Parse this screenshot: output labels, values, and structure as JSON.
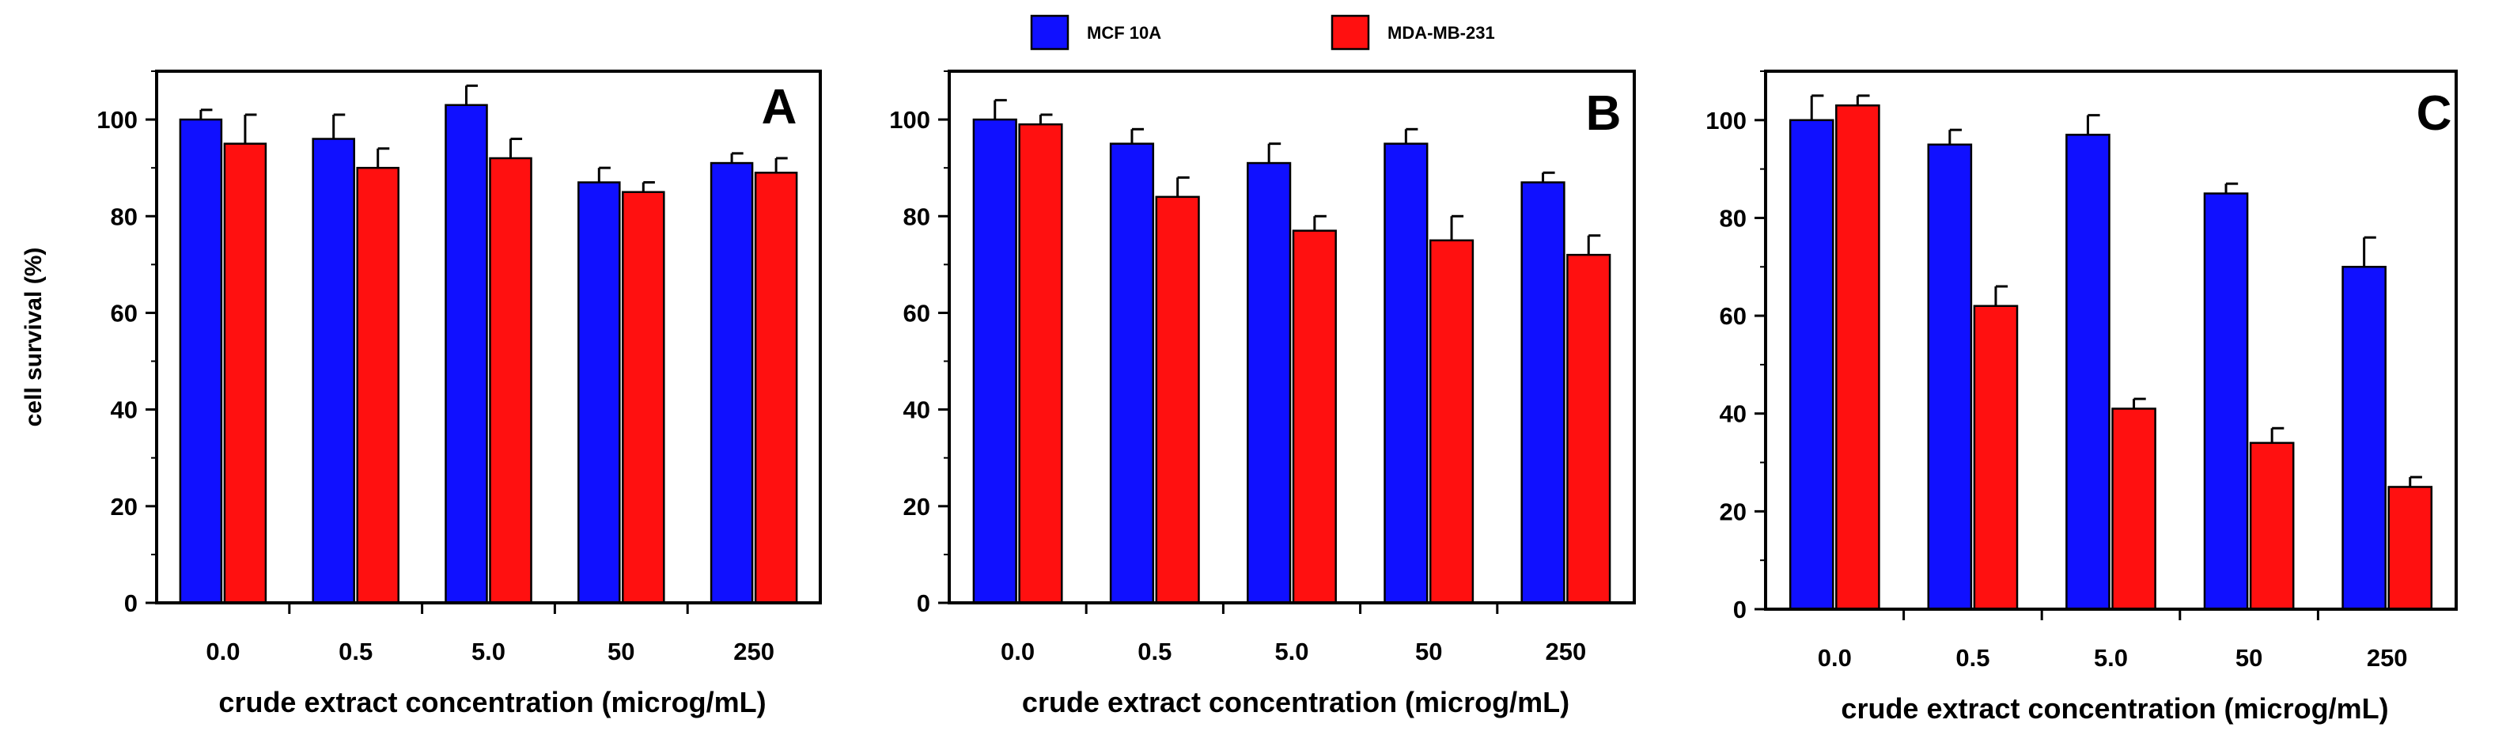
{
  "legend": {
    "entries": [
      {
        "label": "MCF 10A",
        "color": "#1010ff"
      },
      {
        "label": "MDA-MB-231",
        "color": "#ff1010"
      }
    ]
  },
  "chart_data": [
    {
      "type": "bar",
      "panel": "A",
      "categories": [
        "0.0",
        "0.5",
        "5.0",
        "50",
        "250"
      ],
      "series": [
        {
          "name": "MCF 10A",
          "values": [
            100,
            96,
            103,
            87,
            91
          ],
          "errors": [
            2,
            5,
            4,
            3,
            2
          ]
        },
        {
          "name": "MDA-MB-231",
          "values": [
            95,
            90,
            92,
            85,
            89
          ],
          "errors": [
            6,
            4,
            4,
            2,
            3
          ]
        }
      ],
      "xlabel": "crude extract concentration (microg/mL)",
      "ylabel": "cell survival (%)",
      "ylim": [
        0,
        110
      ],
      "yticks": [
        "0",
        "20",
        "40",
        "60",
        "80",
        "100"
      ]
    },
    {
      "type": "bar",
      "panel": "B",
      "categories": [
        "0.0",
        "0.5",
        "5.0",
        "50",
        "250"
      ],
      "series": [
        {
          "name": "MCF 10A",
          "values": [
            100,
            95,
            91,
            95,
            87
          ],
          "errors": [
            4,
            3,
            4,
            3,
            2
          ]
        },
        {
          "name": "MDA-MB-231",
          "values": [
            99,
            84,
            77,
            75,
            72
          ],
          "errors": [
            2,
            4,
            3,
            5,
            4
          ]
        }
      ],
      "xlabel": "crude extract concentration (microg/mL)",
      "ylabel": "",
      "ylim": [
        0,
        110
      ],
      "yticks": [
        "0",
        "20",
        "40",
        "60",
        "80",
        "100"
      ]
    },
    {
      "type": "bar",
      "panel": "C",
      "categories": [
        "0.0",
        "0.5",
        "5.0",
        "50",
        "250"
      ],
      "series": [
        {
          "name": "MCF 10A",
          "values": [
            100,
            95,
            97,
            85,
            70
          ],
          "errors": [
            5,
            3,
            4,
            2,
            6
          ]
        },
        {
          "name": "MDA-MB-231",
          "values": [
            103,
            62,
            41,
            34,
            25
          ],
          "errors": [
            2,
            4,
            2,
            3,
            2
          ]
        }
      ],
      "xlabel": "crude extract concentration (microg/mL)",
      "ylabel": "",
      "ylim": [
        0,
        110
      ],
      "yticks": [
        "0",
        "20",
        "40",
        "60",
        "80",
        "100"
      ]
    }
  ]
}
